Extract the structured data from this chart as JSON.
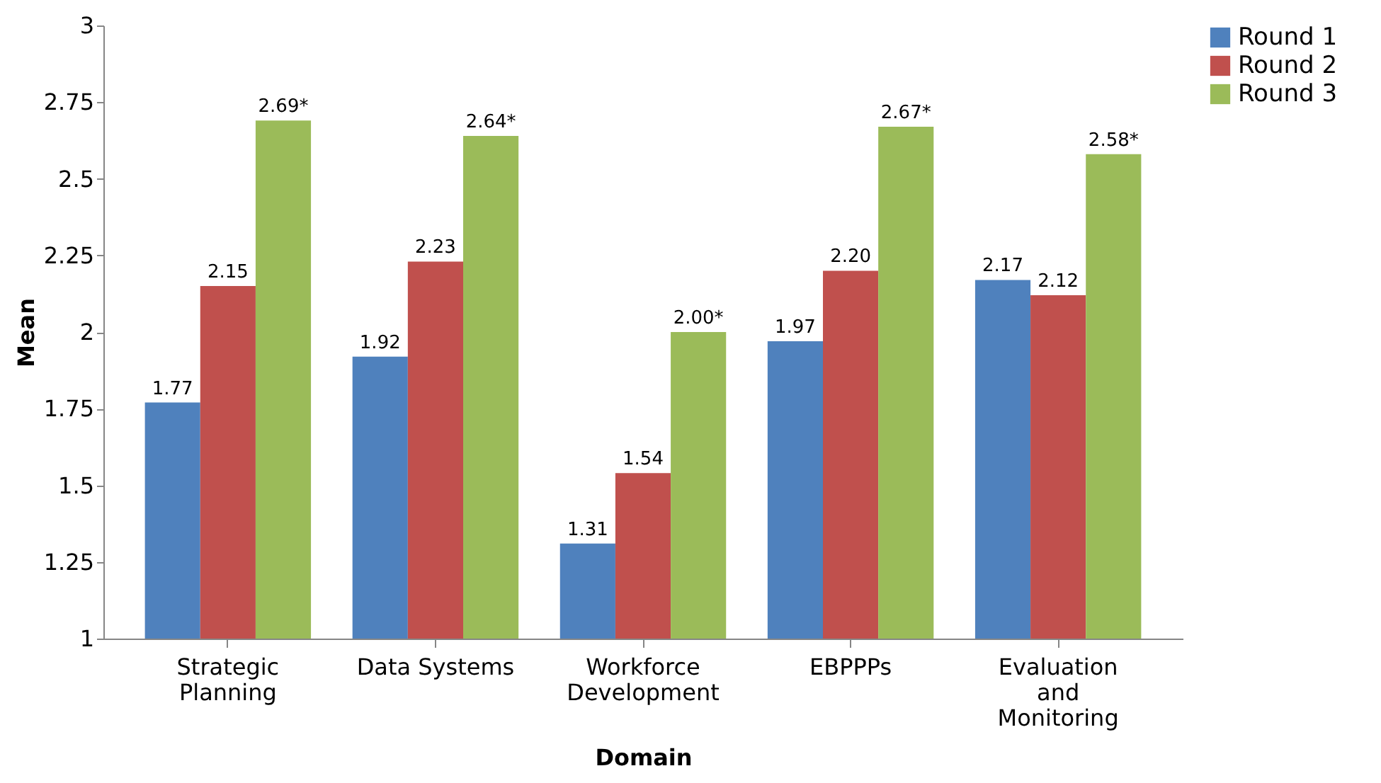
{
  "chart_data": {
    "type": "bar",
    "xlabel": "Domain",
    "ylabel": "Mean",
    "categories": [
      "Strategic Planning",
      "Data Systems",
      "Workforce Development",
      "EBPPPs",
      "Evaluation and Monitoring"
    ],
    "series": [
      {
        "name": "Round 1",
        "color": "#4f81bd",
        "values": [
          1.77,
          1.92,
          1.31,
          1.97,
          2.17
        ],
        "value_labels": [
          "1.77",
          "1.92",
          "1.31",
          "1.97",
          "2.17"
        ]
      },
      {
        "name": "Round 2",
        "color": "#c0504d",
        "values": [
          2.15,
          2.23,
          1.54,
          2.2,
          2.12
        ],
        "value_labels": [
          "2.15",
          "2.23",
          "1.54",
          "2.20",
          "2.12"
        ]
      },
      {
        "name": "Round 3",
        "color": "#9bbb59",
        "values": [
          2.69,
          2.64,
          2.0,
          2.67,
          2.58
        ],
        "value_labels": [
          "2.69*",
          "2.64*",
          "2.00*",
          "2.67*",
          "2.58*"
        ]
      }
    ],
    "ylim": [
      1,
      3
    ],
    "yticks": [
      1,
      1.25,
      1.5,
      1.75,
      2,
      2.25,
      2.5,
      2.75,
      3
    ],
    "grid": false,
    "legend": "right"
  }
}
